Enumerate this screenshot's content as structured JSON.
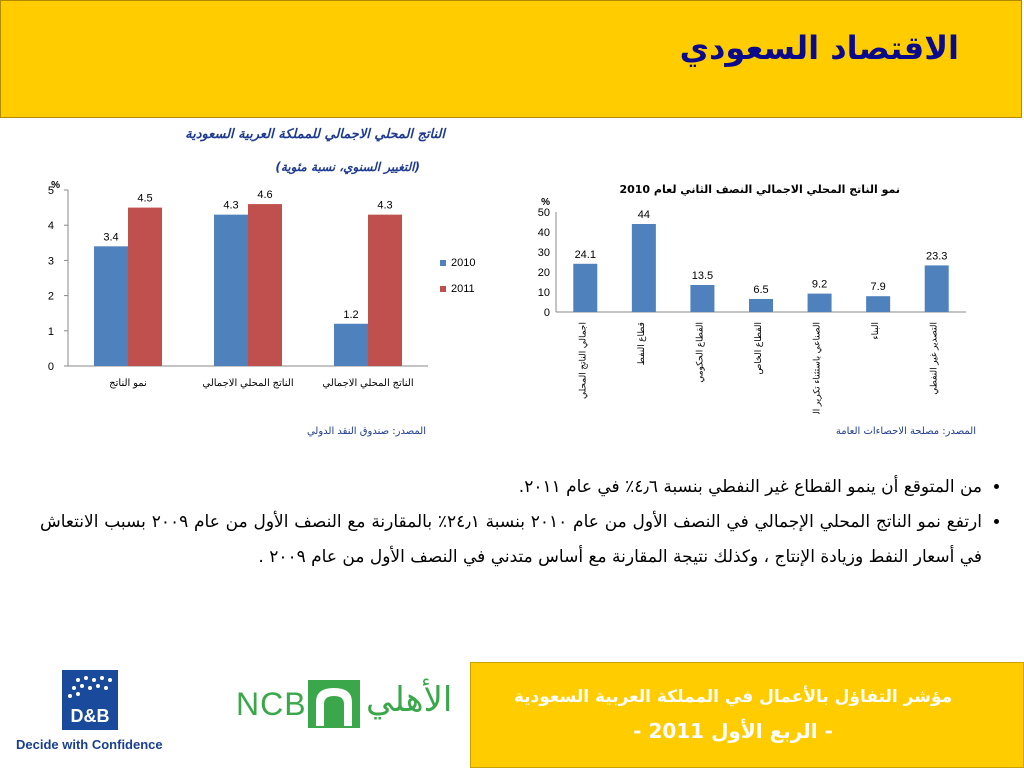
{
  "header": {
    "title": "الاقتصاد السعودي"
  },
  "chart_data": [
    {
      "type": "bar",
      "title": "الناتج المحلي الاجمالي للمملكة العربية السعودية",
      "subtitle": "(التغيير السنوي، نسبة مئوية)",
      "ylabel": "%",
      "ylim": [
        0,
        5
      ],
      "yticks": [
        "0",
        "1",
        "2",
        "3",
        "4",
        "5"
      ],
      "categories": [
        "نمو الناتج",
        "الناتج المحلي الاجمالي",
        "الناتج المحلي الاجمالي"
      ],
      "series": [
        {
          "name": "2010",
          "color": "#4f81bd",
          "values": [
            3.4,
            4.3,
            1.2
          ],
          "labels": [
            "3.4",
            "4.3",
            "1.2"
          ]
        },
        {
          "name": "2011",
          "color": "#c0504d",
          "values": [
            4.5,
            4.6,
            4.3
          ],
          "labels": [
            "4.5",
            "4.6",
            "4.3"
          ]
        }
      ],
      "legend": "right",
      "source": "المصدر: صندوق النقد الدولي"
    },
    {
      "type": "bar",
      "title": "نمو الناتج المحلي الاجمالي النصف الثاني لعام 2010",
      "ylabel": "%",
      "ylim": [
        0,
        50
      ],
      "yticks": [
        "0",
        "10",
        "20",
        "30",
        "40",
        "50"
      ],
      "categories": [
        "اجمالي الناتج المحلي",
        "قطاع النفط",
        "القطاع الحكومي",
        "القطاع الخاص",
        "الصناعي باستثناء تكرير النفط",
        "البناء",
        "التصدير غير النفطي"
      ],
      "series": [
        {
          "color": "#4f81bd",
          "values": [
            24.1,
            44,
            13.5,
            6.5,
            9.2,
            7.9,
            23.3
          ],
          "labels": [
            "24.1",
            "44",
            "13.5",
            "6.5",
            "9.2",
            "7.9",
            "23.3"
          ]
        }
      ],
      "source": "المصدر: مصلحة الاحصاءات العامة"
    }
  ],
  "bullets": [
    "من المتوقع أن ينمو القطاع غير النفطي بنسبة ٤٫٦٪ في عام ٢٠١١.",
    "ارتفع نمو الناتج المحلي الإجمالي في النصف الأول من عام ٢٠١٠ بنسبة ٢٤٫١٪ بالمقارنة مع النصف الأول من عام ٢٠٠٩ بسبب الانتعاش في أسعار النفط وزيادة الإنتاج ، وكذلك نتيجة المقارنة مع أساس متدني في النصف الأول من عام ٢٠٠٩ ."
  ],
  "footer": {
    "line1": "مؤشر التفاؤل بالأعمال في المملكة العربية السعودية",
    "line2": "- الربع الأول 2011 -"
  },
  "logos": {
    "dnb": "D&B",
    "dnb_tagline": "Decide with Confidence",
    "ncb": "NCB",
    "ahli": "الأهلي"
  }
}
